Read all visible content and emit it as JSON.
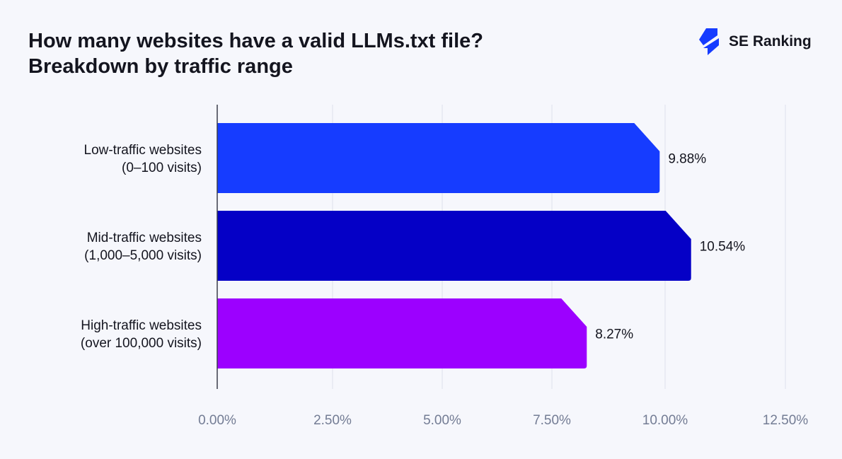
{
  "chart_data": {
    "type": "bar",
    "orientation": "horizontal",
    "title": "How many websites have a valid LLMs.txt file?",
    "subtitle": "Breakdown by traffic range",
    "categories": [
      [
        "Low-traffic websites",
        "(0–100 visits)"
      ],
      [
        "Mid-traffic websites",
        "(1,000–5,000 visits)"
      ],
      [
        "High-traffic websites",
        "(over 100,000 visits)"
      ]
    ],
    "values": [
      9.88,
      10.54,
      8.27
    ],
    "data_labels": [
      "9.88%",
      "10.54%",
      "8.27%"
    ],
    "colors": [
      "#163cff",
      "#0500c6",
      "#9c00ff"
    ],
    "xlim": [
      0,
      12.5
    ],
    "xticks": [
      0,
      2.5,
      5,
      7.5,
      10,
      12.5
    ],
    "xtick_labels": [
      "0.00%",
      "2.50%",
      "5.00%",
      "7.50%",
      "10.00%",
      "12.50%"
    ],
    "grid": true,
    "xlabel": "",
    "ylabel": ""
  },
  "brand": {
    "name": "SE Ranking",
    "color": "#163cff"
  }
}
